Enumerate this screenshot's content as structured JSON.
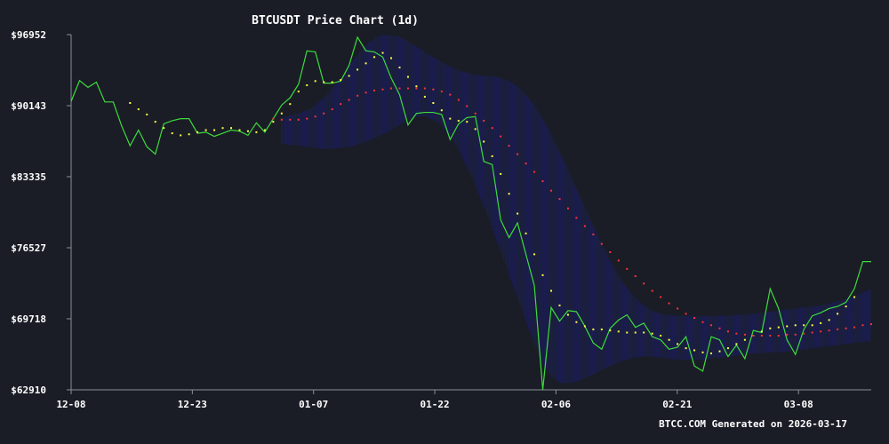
{
  "chart_data": {
    "type": "line",
    "title": "BTCUSDT Price Chart (1d)",
    "footer": "BTCC.COM Generated on 2026-03-17",
    "xlabel": "",
    "ylabel": "",
    "x_tick_labels": [
      "12-08",
      "12-23",
      "01-07",
      "01-22",
      "02-06",
      "02-21",
      "03-08"
    ],
    "y_tick_labels": [
      "$62910",
      "$69718",
      "$76527",
      "$83335",
      "$90143",
      "$96952"
    ],
    "ylim": [
      62910,
      96952
    ],
    "x_range": [
      "2025-12-08",
      "2026-03-17"
    ],
    "grid": false,
    "band_color": "#1b1f6e",
    "series": [
      {
        "kind": "price",
        "color": "#3ddc3d",
        "values": [
          90550,
          92550,
          91900,
          92400,
          90500,
          90500,
          88200,
          86300,
          87800,
          86200,
          85500,
          88400,
          88700,
          88900,
          88900,
          87500,
          87600,
          87200,
          87500,
          87800,
          87700,
          87300,
          88500,
          87600,
          88900,
          90200,
          90900,
          92200,
          95400,
          95300,
          92300,
          92300,
          92500,
          94000,
          96700,
          95400,
          95300,
          94800,
          92800,
          91200,
          88300,
          89400,
          89500,
          89500,
          89300,
          86900,
          88400,
          89000,
          89100,
          84800,
          84500,
          79200,
          77500,
          78900,
          75900,
          72900,
          62910,
          70800,
          69500,
          70500,
          70400,
          69000,
          67400,
          66800,
          68800,
          69600,
          70100,
          68900,
          69300,
          68000,
          67700,
          66800,
          67000,
          68000,
          65200,
          64700,
          68000,
          67700,
          66100,
          67200,
          65900,
          68600,
          68400,
          72600,
          70700,
          67700,
          66300,
          68700,
          70000,
          70300,
          70700,
          70900,
          71300,
          72600,
          75200,
          75200
        ]
      },
      {
        "kind": "short-ma",
        "color": "#ffff44",
        "start_index": 7,
        "values": [
          90400,
          89800,
          89300,
          88600,
          88000,
          87500,
          87300,
          87400,
          87600,
          87800,
          87800,
          88000,
          88000,
          87800,
          87700,
          87600,
          87800,
          88600,
          89400,
          90300,
          91500,
          92100,
          92500,
          92400,
          92400,
          92600,
          93000,
          93600,
          94200,
          94800,
          95200,
          94700,
          93800,
          92900,
          92000,
          91000,
          90400,
          89700,
          88900,
          88700,
          88600,
          87900,
          86700,
          85300,
          83600,
          81700,
          79800,
          77900,
          75900,
          73900,
          72400,
          71000,
          70100,
          69400,
          69000,
          68700,
          68700,
          68600,
          68500,
          68400,
          68400,
          68400,
          68300,
          68100,
          67700,
          67300,
          66900,
          66700,
          66500,
          66400,
          66600,
          66900,
          67300,
          67700,
          68100,
          68500,
          68800,
          68900,
          69000,
          69100,
          69100,
          69100,
          69300,
          69600,
          70200,
          70900,
          71800
        ]
      },
      {
        "kind": "long-ma",
        "color": "#ff3333",
        "start_index": 24,
        "values": [
          88900,
          88800,
          88800,
          88800,
          88900,
          89100,
          89400,
          89800,
          90300,
          90700,
          91100,
          91400,
          91600,
          91700,
          91800,
          91800,
          91800,
          91800,
          91800,
          91700,
          91500,
          91200,
          90700,
          90100,
          89400,
          88700,
          88000,
          87200,
          86300,
          85500,
          84600,
          83800,
          82900,
          82000,
          81200,
          80300,
          79400,
          78600,
          77800,
          76900,
          76100,
          75300,
          74500,
          73800,
          73100,
          72400,
          71800,
          71200,
          70700,
          70200,
          69800,
          69400,
          69100,
          68800,
          68500,
          68300,
          68200,
          68100,
          68100,
          68100,
          68100,
          68200,
          68200,
          68300,
          68400,
          68500,
          68600,
          68700,
          68800,
          68900,
          69100,
          69200
        ]
      },
      {
        "kind": "band-upper",
        "start_index": 25,
        "values": [
          89000,
          89200,
          89400,
          89700,
          90200,
          90900,
          91800,
          92800,
          93900,
          95000,
          95900,
          96600,
          96900,
          96900,
          96700,
          96300,
          95800,
          95300,
          94800,
          94300,
          93900,
          93500,
          93300,
          93100,
          93000,
          93000,
          92800,
          92500,
          92000,
          91200,
          90200,
          88900,
          87400,
          85700,
          84000,
          82200,
          80400,
          78600,
          76900,
          75300,
          73900,
          72700,
          71700,
          71000,
          70500,
          70200,
          70100,
          70000,
          70000,
          70000,
          70000,
          70000,
          70000,
          70000,
          70100,
          70100,
          70200,
          70300,
          70400,
          70500,
          70600,
          70700,
          70800,
          70900,
          71000,
          71200,
          71400,
          71600,
          71900,
          72200,
          72600
        ]
      },
      {
        "kind": "band-lower",
        "start_index": 25,
        "values": [
          86500,
          86400,
          86300,
          86200,
          86100,
          86000,
          86000,
          86100,
          86200,
          86400,
          86700,
          87000,
          87400,
          87800,
          88300,
          88800,
          89100,
          89100,
          88800,
          88200,
          87200,
          85900,
          84300,
          82500,
          80500,
          78400,
          76200,
          74000,
          71700,
          69500,
          67400,
          65500,
          64200,
          63600,
          63500,
          63700,
          64000,
          64400,
          64800,
          65200,
          65500,
          65800,
          66000,
          66100,
          66100,
          66000,
          65900,
          65800,
          65800,
          65800,
          65800,
          65900,
          66000,
          66100,
          66200,
          66300,
          66400,
          66400,
          66500,
          66500,
          66600,
          66700,
          66800,
          66900,
          67000,
          67100,
          67200,
          67300,
          67400,
          67500,
          67600
        ]
      }
    ]
  }
}
